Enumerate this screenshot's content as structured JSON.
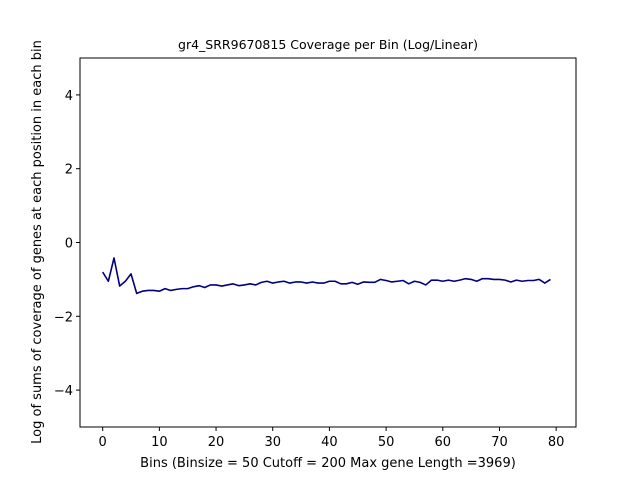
{
  "chart_data": {
    "type": "line",
    "title": "gr4_SRR9670815 Coverage per Bin (Log/Linear)",
    "xlabel": "Bins  (Binsize = 50 Cutoff = 200 Max gene Length =3969)",
    "ylabel": "Log of sums of coverage of genes at each position in each bin",
    "xlim": [
      -4,
      83.5
    ],
    "ylim": [
      -5,
      5
    ],
    "xticks": [
      0,
      10,
      20,
      30,
      40,
      50,
      60,
      70,
      80
    ],
    "yticks": [
      -4,
      -2,
      0,
      2,
      4
    ],
    "grid": false,
    "line_color": "#000080",
    "series": [
      {
        "x": [
          0,
          1,
          2,
          3,
          4,
          5,
          6,
          7,
          8,
          9,
          10,
          11,
          12,
          13,
          14,
          15,
          16,
          17,
          18,
          19,
          20,
          21,
          22,
          23,
          24,
          25,
          26,
          27,
          28,
          29,
          30,
          31,
          32,
          33,
          34,
          35,
          36,
          37,
          38,
          39,
          40,
          41,
          42,
          43,
          44,
          45,
          46,
          47,
          48,
          49,
          50,
          51,
          52,
          53,
          54,
          55,
          56,
          57,
          58,
          59,
          60,
          61,
          62,
          63,
          64,
          65,
          66,
          67,
          68,
          69,
          70,
          71,
          72,
          73,
          74,
          75,
          76,
          77,
          78,
          79
        ],
        "values": [
          -0.8,
          -1.05,
          -0.42,
          -1.18,
          -1.05,
          -0.85,
          -1.38,
          -1.32,
          -1.3,
          -1.3,
          -1.32,
          -1.25,
          -1.3,
          -1.27,
          -1.25,
          -1.25,
          -1.2,
          -1.17,
          -1.22,
          -1.15,
          -1.15,
          -1.18,
          -1.15,
          -1.12,
          -1.17,
          -1.15,
          -1.12,
          -1.15,
          -1.08,
          -1.05,
          -1.1,
          -1.07,
          -1.05,
          -1.1,
          -1.07,
          -1.07,
          -1.1,
          -1.07,
          -1.1,
          -1.1,
          -1.05,
          -1.05,
          -1.12,
          -1.12,
          -1.08,
          -1.13,
          -1.07,
          -1.08,
          -1.08,
          -1.0,
          -1.03,
          -1.07,
          -1.05,
          -1.03,
          -1.12,
          -1.05,
          -1.08,
          -1.15,
          -1.02,
          -1.02,
          -1.05,
          -1.02,
          -1.05,
          -1.02,
          -0.98,
          -1.0,
          -1.05,
          -0.98,
          -0.98,
          -1.0,
          -1.0,
          -1.02,
          -1.07,
          -1.02,
          -1.05,
          -1.03,
          -1.03,
          -1.0,
          -1.1,
          -1.0
        ]
      }
    ]
  }
}
